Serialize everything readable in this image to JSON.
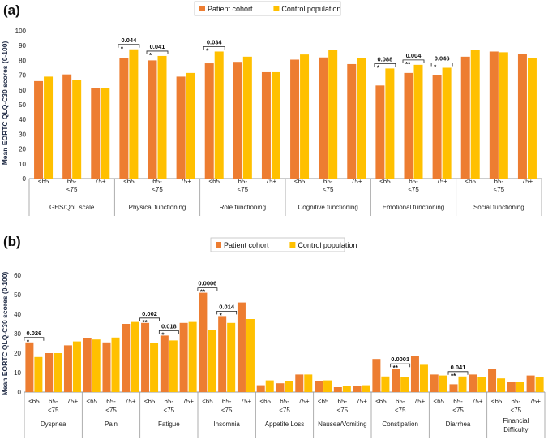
{
  "chart_data": [
    {
      "type": "bar",
      "panel": "(a)",
      "ylabel": "Mean EORTC QLQ-C30 scores (0-100)",
      "ylim": [
        0,
        100
      ],
      "yticks": [
        0,
        10,
        20,
        30,
        40,
        50,
        60,
        70,
        80,
        90,
        100
      ],
      "series_names": [
        "Patient cohort",
        "Control population"
      ],
      "colors": [
        "#ED7D31",
        "#FFC000"
      ],
      "groups": [
        {
          "name": "GHS/QoL scale",
          "ages": [
            {
              "label": "<65",
              "values": [
                66,
                69
              ]
            },
            {
              "label": "65-<75",
              "values": [
                70.5,
                67
              ]
            },
            {
              "label": "75+",
              "values": [
                61,
                61
              ]
            }
          ],
          "sig": []
        },
        {
          "name": "Physical functioning",
          "ages": [
            {
              "label": "<65",
              "values": [
                81.5,
                87.5
              ]
            },
            {
              "label": "65-<75",
              "values": [
                80,
                83
              ]
            },
            {
              "label": "75+",
              "values": [
                69,
                71.5
              ]
            }
          ],
          "sig": [
            {
              "age": 0,
              "p": "0.044",
              "stars": "*"
            },
            {
              "age": 1,
              "p": "0.041",
              "stars": "*"
            }
          ]
        },
        {
          "name": "Role functioning",
          "ages": [
            {
              "label": "<65",
              "values": [
                78,
                86
              ]
            },
            {
              "label": "65-<75",
              "values": [
                79,
                82.5
              ]
            },
            {
              "label": "75+",
              "values": [
                72,
                72
              ]
            }
          ],
          "sig": [
            {
              "age": 0,
              "p": "0.034",
              "stars": "*"
            }
          ]
        },
        {
          "name": "Cognitive functioning",
          "ages": [
            {
              "label": "<65",
              "values": [
                80.5,
                84
              ]
            },
            {
              "label": "65-<75",
              "values": [
                82,
                87
              ]
            },
            {
              "label": "75+",
              "values": [
                77.5,
                81.5
              ]
            }
          ],
          "sig": []
        },
        {
          "name": "Emotional functioning",
          "ages": [
            {
              "label": "<65",
              "values": [
                63,
                74.5
              ]
            },
            {
              "label": "65-<75",
              "values": [
                71.5,
                77
              ]
            },
            {
              "label": "75+",
              "values": [
                70,
                75
              ]
            }
          ],
          "sig": [
            {
              "age": 0,
              "p": "0.088",
              "stars": "*"
            },
            {
              "age": 1,
              "p": "0.004",
              "stars": "**"
            },
            {
              "age": 2,
              "p": "0.046",
              "stars": "*"
            }
          ]
        },
        {
          "name": "Social functioning",
          "ages": [
            {
              "label": "<65",
              "values": [
                82.5,
                87
              ]
            },
            {
              "label": "65-<75",
              "values": [
                86,
                85.5
              ]
            },
            {
              "label": "75+",
              "values": [
                84.5,
                81.5
              ]
            }
          ],
          "sig": []
        }
      ]
    },
    {
      "type": "bar",
      "panel": "(b)",
      "ylabel": "Mean EORTC QLQ-C30 scores (0-100)",
      "ylim": [
        0,
        60
      ],
      "yticks": [
        0,
        10,
        20,
        30,
        40,
        50,
        60
      ],
      "series_names": [
        "Patient cohort",
        "Control population"
      ],
      "colors": [
        "#ED7D31",
        "#FFC000"
      ],
      "groups": [
        {
          "name": "Dyspnea",
          "ages": [
            {
              "label": "<65",
              "values": [
                25.5,
                18
              ]
            },
            {
              "label": "65-<75",
              "values": [
                20,
                20
              ]
            },
            {
              "label": "75+",
              "values": [
                24,
                26
              ]
            }
          ],
          "sig": [
            {
              "age": 0,
              "p": "0.026",
              "stars": "*"
            }
          ]
        },
        {
          "name": "Pain",
          "ages": [
            {
              "label": "<65",
              "values": [
                27.5,
                27
              ]
            },
            {
              "label": "65-<75",
              "values": [
                25.5,
                28
              ]
            },
            {
              "label": "75+",
              "values": [
                35,
                36
              ]
            }
          ],
          "sig": []
        },
        {
          "name": "Fatigue",
          "ages": [
            {
              "label": "<65",
              "values": [
                35.5,
                25
              ]
            },
            {
              "label": "65-<75",
              "values": [
                29,
                26.5
              ]
            },
            {
              "label": "75+",
              "values": [
                35.5,
                36
              ]
            }
          ],
          "sig": [
            {
              "age": 0,
              "p": "0.002",
              "stars": "**"
            },
            {
              "age": 1,
              "p": "0.018",
              "stars": "*"
            }
          ]
        },
        {
          "name": "Insomnia",
          "ages": [
            {
              "label": "<65",
              "values": [
                51,
                32
              ]
            },
            {
              "label": "65-<75",
              "values": [
                39,
                35.5
              ]
            },
            {
              "label": "75+",
              "values": [
                46,
                37.5
              ]
            }
          ],
          "sig": [
            {
              "age": 0,
              "p": "0.0006",
              "stars": "**"
            },
            {
              "age": 1,
              "p": "0.014",
              "stars": "*"
            }
          ]
        },
        {
          "name": "Appetite Loss",
          "ages": [
            {
              "label": "<65",
              "values": [
                3.5,
                6
              ]
            },
            {
              "label": "65-<75",
              "values": [
                4.5,
                5.5
              ]
            },
            {
              "label": "75+",
              "values": [
                9,
                9
              ]
            }
          ],
          "sig": []
        },
        {
          "name": "Nausea/Vomiting",
          "ages": [
            {
              "label": "<65",
              "values": [
                5.5,
                6
              ]
            },
            {
              "label": "65-<75",
              "values": [
                2.5,
                3
              ]
            },
            {
              "label": "75+",
              "values": [
                3,
                3.5
              ]
            }
          ],
          "sig": []
        },
        {
          "name": "Constipation",
          "ages": [
            {
              "label": "<65",
              "values": [
                17,
                8
              ]
            },
            {
              "label": "65-<75",
              "values": [
                12,
                7.5
              ]
            },
            {
              "label": "75+",
              "values": [
                18.5,
                14
              ]
            }
          ],
          "sig": [
            {
              "age": 1,
              "p": "0.0001",
              "stars": "**"
            }
          ]
        },
        {
          "name": "Diarrhea",
          "ages": [
            {
              "label": "<65",
              "values": [
                9,
                8.5
              ]
            },
            {
              "label": "65-<75",
              "values": [
                4,
                8
              ]
            },
            {
              "label": "75+",
              "values": [
                9,
                7.5
              ]
            }
          ],
          "sig": [
            {
              "age": 1,
              "p": "0.041",
              "stars": "**"
            }
          ]
        },
        {
          "name": "Financial Difficulty",
          "ages": [
            {
              "label": "<65",
              "values": [
                12,
                7
              ]
            },
            {
              "label": "65-<75",
              "values": [
                5,
                5
              ]
            },
            {
              "label": "75+",
              "values": [
                8.5,
                7.5
              ]
            }
          ],
          "sig": []
        }
      ]
    }
  ]
}
